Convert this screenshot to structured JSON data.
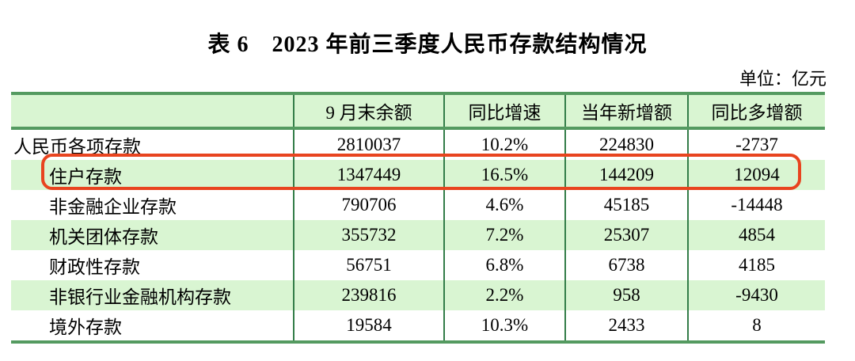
{
  "title": "表 6　2023 年前三季度人民币存款结构情况",
  "unit_label": "单位：亿元",
  "colors": {
    "row_highlight_bg": "#d9f5d2",
    "table_border": "#549a60",
    "grid_line": "#337d48",
    "highlight_outline": "#e8441f"
  },
  "table": {
    "headers": [
      "",
      "9 月末余额",
      "同比增速",
      "当年新增额",
      "同比多增额"
    ],
    "rows": [
      {
        "label": "人民币各项存款",
        "indent": false,
        "green": false,
        "highlighted": false,
        "values": [
          "2810037",
          "10.2%",
          "224830",
          "-2737"
        ]
      },
      {
        "label": "住户存款",
        "indent": true,
        "green": true,
        "highlighted": true,
        "values": [
          "1347449",
          "16.5%",
          "144209",
          "12094"
        ]
      },
      {
        "label": "非金融企业存款",
        "indent": true,
        "green": false,
        "highlighted": false,
        "values": [
          "790706",
          "4.6%",
          "45185",
          "-14448"
        ]
      },
      {
        "label": "机关团体存款",
        "indent": true,
        "green": true,
        "highlighted": false,
        "values": [
          "355732",
          "7.2%",
          "25307",
          "4854"
        ]
      },
      {
        "label": "财政性存款",
        "indent": true,
        "green": false,
        "highlighted": false,
        "values": [
          "56751",
          "6.8%",
          "6738",
          "4185"
        ]
      },
      {
        "label": "非银行业金融机构存款",
        "indent": true,
        "green": true,
        "highlighted": false,
        "values": [
          "239816",
          "2.2%",
          "958",
          "-9430"
        ]
      },
      {
        "label": "境外存款",
        "indent": true,
        "green": false,
        "highlighted": false,
        "values": [
          "19584",
          "10.3%",
          "2433",
          "8"
        ]
      }
    ]
  }
}
